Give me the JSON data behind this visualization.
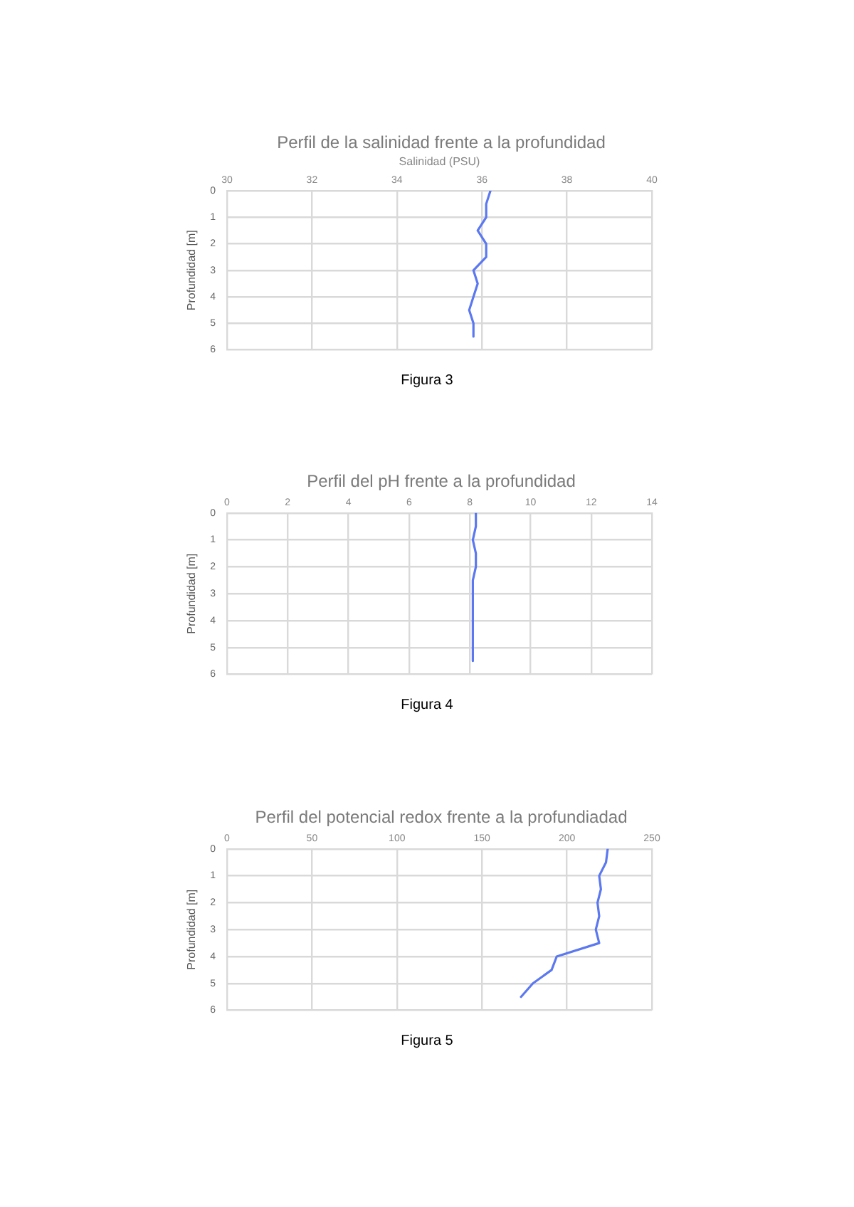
{
  "chart_data": [
    {
      "type": "line",
      "title": "Perfil de la salinidad frente a la profundidad",
      "xlabel": "Salinidad (PSU)",
      "ylabel": "Profundidad [m]",
      "xlim": [
        30,
        40
      ],
      "xticks": [
        30,
        32,
        34,
        36,
        38,
        40
      ],
      "ylim": [
        6,
        0
      ],
      "yticks": [
        0,
        1,
        2,
        3,
        4,
        5,
        6
      ],
      "grid": true,
      "legend": false,
      "marker": "none",
      "annotations": [
        "Figura 3"
      ],
      "series": [
        {
          "color": "#5b78f0",
          "x": [
            36.2,
            36.1,
            36.1,
            35.9,
            36.1,
            36.1,
            35.8,
            35.9,
            35.8,
            35.7,
            35.8,
            35.8
          ],
          "values": [
            0,
            0.5,
            1,
            1.5,
            2,
            2.5,
            3,
            3.5,
            4,
            4.5,
            5,
            5.5
          ]
        }
      ]
    },
    {
      "type": "line",
      "title": "Perfil del pH frente a la profundidad",
      "ylabel": "Profundidad [m]",
      "xlim": [
        0,
        14
      ],
      "xticks": [
        0,
        2,
        4,
        6,
        8,
        10,
        12,
        14
      ],
      "ylim": [
        6,
        0
      ],
      "yticks": [
        0,
        1,
        2,
        3,
        4,
        5,
        6
      ],
      "grid": true,
      "legend": false,
      "marker": "none",
      "annotations": [
        "Figura 4"
      ],
      "series": [
        {
          "color": "#5b78f0",
          "x": [
            8.2,
            8.2,
            8.1,
            8.2,
            8.2,
            8.1,
            8.1,
            8.1,
            8.1,
            8.1,
            8.1,
            8.1
          ],
          "values": [
            0,
            0.5,
            1,
            1.5,
            2,
            2.5,
            3,
            3.5,
            4,
            4.5,
            5,
            5.5
          ]
        }
      ]
    },
    {
      "type": "line",
      "title": "Perfil del potencial redox frente a la profundiadad",
      "ylabel": "Profundidad [m]",
      "xlim": [
        0,
        250
      ],
      "xticks": [
        0,
        50,
        100,
        150,
        200,
        250
      ],
      "ylim": [
        6,
        0
      ],
      "yticks": [
        0,
        1,
        2,
        3,
        4,
        5,
        6
      ],
      "grid": true,
      "legend": false,
      "marker": "none",
      "annotations": [
        "Figura 5"
      ],
      "series": [
        {
          "color": "#5b78f0",
          "x": [
            224,
            223,
            219,
            220,
            218,
            219,
            217,
            219,
            194,
            191,
            180,
            173
          ],
          "values": [
            0,
            0.5,
            1,
            1.5,
            2,
            2.5,
            3,
            3.5,
            4,
            4.5,
            5,
            5.5
          ]
        }
      ]
    }
  ]
}
